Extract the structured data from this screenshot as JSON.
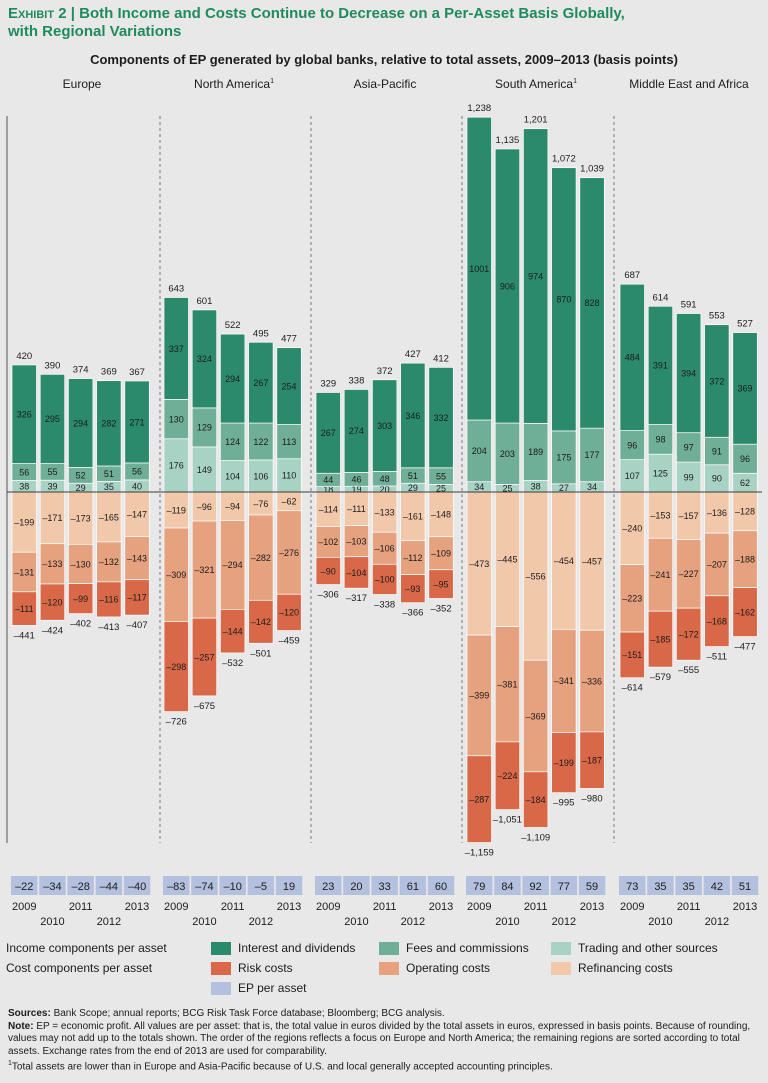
{
  "title_line1_prefix": "Exhibit 2",
  "title_line1": "Both Income and Costs Continue to Decrease on a Per-Asset Basis Globally,",
  "title_line2": "with Regional Variations",
  "subtitle": "Components of EP generated by global banks, relative to total assets, 2009–2013 (basis points)",
  "colors": {
    "interest": "#2b8a6c",
    "fees": "#6fae97",
    "trading": "#a8d2c4",
    "risk": "#d96848",
    "operating": "#e6a17f",
    "refinancing": "#f2c8ab",
    "ep_box": "#b3c1de",
    "title_green": "#1f8b5c"
  },
  "chart_data": {
    "type": "bar",
    "stacked": true,
    "unit": "basis points",
    "years": [
      "2009",
      "2010",
      "2011",
      "2012",
      "2013"
    ],
    "regions": [
      {
        "name": "Europe",
        "sup": "",
        "interest": [
          326,
          295,
          294,
          282,
          271
        ],
        "fees": [
          56,
          55,
          52,
          51,
          56
        ],
        "trading": [
          38,
          39,
          29,
          35,
          40
        ],
        "income_total": [
          420,
          390,
          374,
          369,
          367
        ],
        "refinancing": [
          -199,
          -171,
          -173,
          -165,
          -147
        ],
        "operating": [
          -131,
          -133,
          -130,
          -132,
          -143
        ],
        "risk": [
          -111,
          -120,
          -99,
          -116,
          -117
        ],
        "cost_total": [
          -441,
          -424,
          -402,
          -413,
          -407
        ],
        "ep": [
          -22,
          -34,
          -28,
          -44,
          -40
        ]
      },
      {
        "name": "North America",
        "sup": "1",
        "interest": [
          337,
          324,
          294,
          267,
          254
        ],
        "fees": [
          130,
          129,
          124,
          122,
          113
        ],
        "trading": [
          176,
          149,
          104,
          106,
          110
        ],
        "income_total": [
          643,
          601,
          522,
          495,
          477
        ],
        "refinancing": [
          -119,
          -96,
          -94,
          -76,
          -62
        ],
        "operating": [
          -309,
          -321,
          -294,
          -282,
          -276
        ],
        "risk": [
          -298,
          -257,
          -144,
          -142,
          -120
        ],
        "cost_total": [
          -726,
          -675,
          -532,
          -501,
          -459
        ],
        "ep": [
          -83,
          -74,
          -10,
          -5,
          19
        ]
      },
      {
        "name": "Asia-Pacific",
        "sup": "",
        "interest": [
          267,
          274,
          303,
          346,
          332
        ],
        "fees": [
          44,
          46,
          48,
          51,
          55
        ],
        "trading": [
          18,
          19,
          20,
          29,
          25
        ],
        "income_total": [
          329,
          338,
          372,
          427,
          412
        ],
        "refinancing": [
          -114,
          -111,
          -133,
          -161,
          -148
        ],
        "operating": [
          -102,
          -103,
          -106,
          -112,
          -109
        ],
        "risk": [
          -90,
          -104,
          -100,
          -93,
          -95
        ],
        "cost_total": [
          -306,
          -317,
          -338,
          -366,
          -352
        ],
        "ep": [
          23,
          20,
          33,
          61,
          60
        ]
      },
      {
        "name": "South America",
        "sup": "1",
        "interest": [
          1001,
          906,
          974,
          870,
          828
        ],
        "fees": [
          204,
          203,
          189,
          175,
          177
        ],
        "trading": [
          34,
          25,
          38,
          27,
          34
        ],
        "income_total": [
          "1,238",
          "1,135",
          "1,201",
          "1,072",
          "1,039"
        ],
        "refinancing": [
          -473,
          -445,
          -556,
          -454,
          -457
        ],
        "operating": [
          -399,
          -381,
          -369,
          -341,
          -336
        ],
        "risk": [
          -287,
          -224,
          -184,
          -199,
          -187
        ],
        "cost_total": [
          "–1,159",
          "–1,051",
          "–1,109",
          "–995",
          "–980"
        ],
        "ep": [
          79,
          84,
          92,
          77,
          59
        ]
      },
      {
        "name": "Middle East and Africa",
        "sup": "",
        "interest": [
          484,
          391,
          394,
          372,
          369
        ],
        "fees": [
          96,
          98,
          97,
          91,
          96
        ],
        "trading": [
          107,
          125,
          99,
          90,
          62
        ],
        "income_total": [
          687,
          614,
          591,
          553,
          527
        ],
        "refinancing": [
          -240,
          -153,
          -157,
          -136,
          -128
        ],
        "operating": [
          -223,
          -241,
          -227,
          -207,
          -188
        ],
        "risk": [
          -151,
          -185,
          -172,
          -168,
          -162
        ],
        "cost_total": [
          -614,
          -579,
          -555,
          -511,
          -477
        ],
        "ep": [
          73,
          35,
          35,
          42,
          51
        ]
      }
    ],
    "legend": {
      "income_label": "Income components per asset",
      "cost_label": "Cost components per asset",
      "interest": "Interest and dividends",
      "fees": "Fees and commissions",
      "trading": "Trading and other sources",
      "risk": "Risk costs",
      "operating": "Operating costs",
      "refinancing": "Refinancing costs",
      "ep": "EP per asset"
    }
  },
  "notes": {
    "sources_label": "Sources:",
    "sources": "Bank Scope; annual reports; BCG Risk Task Force database; Bloomberg; BCG analysis.",
    "note_label": "Note:",
    "note": "EP = economic profit. All values are per asset: that is, the total value in euros divided by the total assets in euros, expressed in basis points. Because of rounding, values may not add up to the totals shown. The order of the regions reflects a focus on Europe and North America; the remaining regions are sorted according to total assets. Exchange rates from the end of 2013 are used for comparability.",
    "footnote_mark": "1",
    "footnote": "Total assets are lower than in Europe and Asia-Pacific because of U.S. and local generally accepted accounting principles."
  }
}
